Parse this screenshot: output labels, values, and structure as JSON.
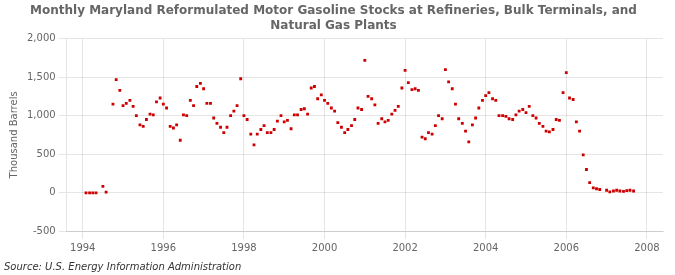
{
  "chart_data": {
    "type": "scatter",
    "title": "Monthly Maryland Reformulated Motor Gasoline Stocks at Refineries, Bulk Terminals, and\nNatural Gas Plants",
    "ylabel": "Thousand Barrels",
    "annotations": [
      "Source: U.S. Energy Information Administration"
    ],
    "color": "#cc0000",
    "marker": "square",
    "grid": true,
    "xlim": [
      1993.6,
      2008.4
    ],
    "xticks": [
      1994,
      1996,
      1998,
      2000,
      2002,
      2004,
      2006,
      2008
    ],
    "ylim": [
      -500,
      2000
    ],
    "yticks": [
      -500,
      0,
      500,
      {
        "value": 1000,
        "label": "1,000"
      },
      {
        "value": 1500,
        "label": "1,500"
      },
      {
        "value": 2000,
        "label": "2,000"
      }
    ],
    "x": [
      1994.08,
      1994.17,
      1994.25,
      1994.33,
      1994.5,
      1994.58,
      1994.75,
      1994.83,
      1994.92,
      1995.0,
      1995.08,
      1995.17,
      1995.25,
      1995.33,
      1995.42,
      1995.5,
      1995.58,
      1995.67,
      1995.75,
      1995.83,
      1995.92,
      1996.0,
      1996.08,
      1996.17,
      1996.25,
      1996.33,
      1996.42,
      1996.5,
      1996.58,
      1996.67,
      1996.75,
      1996.83,
      1996.92,
      1997.0,
      1997.08,
      1997.17,
      1997.25,
      1997.33,
      1997.42,
      1997.5,
      1997.58,
      1997.67,
      1997.75,
      1997.83,
      1997.92,
      1998.0,
      1998.08,
      1998.17,
      1998.25,
      1998.33,
      1998.42,
      1998.5,
      1998.58,
      1998.67,
      1998.75,
      1998.83,
      1998.92,
      1999.0,
      1999.08,
      1999.17,
      1999.25,
      1999.33,
      1999.42,
      1999.5,
      1999.58,
      1999.67,
      1999.75,
      1999.83,
      1999.92,
      2000.0,
      2000.08,
      2000.17,
      2000.25,
      2000.33,
      2000.42,
      2000.5,
      2000.58,
      2000.67,
      2000.75,
      2000.83,
      2000.92,
      2001.0,
      2001.08,
      2001.17,
      2001.25,
      2001.33,
      2001.42,
      2001.5,
      2001.58,
      2001.67,
      2001.75,
      2001.83,
      2001.92,
      2002.0,
      2002.08,
      2002.17,
      2002.25,
      2002.33,
      2002.42,
      2002.5,
      2002.58,
      2002.67,
      2002.75,
      2002.83,
      2002.92,
      2003.0,
      2003.08,
      2003.17,
      2003.25,
      2003.33,
      2003.42,
      2003.5,
      2003.58,
      2003.67,
      2003.75,
      2003.83,
      2003.92,
      2004.0,
      2004.08,
      2004.17,
      2004.25,
      2004.33,
      2004.42,
      2004.5,
      2004.58,
      2004.67,
      2004.75,
      2004.83,
      2004.92,
      2005.0,
      2005.08,
      2005.17,
      2005.25,
      2005.33,
      2005.42,
      2005.5,
      2005.58,
      2005.67,
      2005.75,
      2005.83,
      2005.92,
      2006.0,
      2006.08,
      2006.17,
      2006.25,
      2006.33,
      2006.42,
      2006.5,
      2006.58,
      2006.67,
      2006.75,
      2006.83,
      2007.0,
      2007.08,
      2007.17,
      2007.25,
      2007.33,
      2007.42,
      2007.5,
      2007.58,
      2007.67
    ],
    "values": [
      -5,
      -5,
      -5,
      -5,
      80,
      5,
      1150,
      1470,
      1330,
      1130,
      1160,
      1200,
      1120,
      1000,
      880,
      860,
      950,
      1020,
      1010,
      1180,
      1230,
      1150,
      1100,
      860,
      840,
      880,
      680,
      1010,
      1000,
      1200,
      1130,
      1380,
      1420,
      1350,
      1160,
      1160,
      970,
      900,
      850,
      780,
      850,
      1000,
      1060,
      1130,
      1480,
      1000,
      950,
      760,
      620,
      760,
      820,
      870,
      780,
      780,
      820,
      930,
      1000,
      920,
      940,
      830,
      1010,
      1010,
      1080,
      1090,
      1020,
      1360,
      1380,
      1220,
      1270,
      1200,
      1160,
      1100,
      1060,
      910,
      850,
      780,
      820,
      870,
      950,
      1100,
      1080,
      1720,
      1250,
      1220,
      1140,
      900,
      960,
      920,
      940,
      1020,
      1070,
      1120,
      1360,
      1590,
      1430,
      1340,
      1350,
      1330,
      720,
      700,
      780,
      760,
      870,
      1000,
      960,
      1600,
      1440,
      1350,
      1150,
      960,
      900,
      800,
      660,
      880,
      970,
      1100,
      1200,
      1260,
      1300,
      1220,
      1200,
      1000,
      1000,
      990,
      960,
      950,
      1010,
      1060,
      1080,
      1040,
      1120,
      1000,
      970,
      900,
      860,
      800,
      790,
      820,
      950,
      940,
      1300,
      1560,
      1230,
      1210,
      920,
      800,
      490,
      300,
      130,
      60,
      50,
      40,
      30,
      10,
      20,
      30,
      20,
      15,
      25,
      30,
      20
    ]
  }
}
